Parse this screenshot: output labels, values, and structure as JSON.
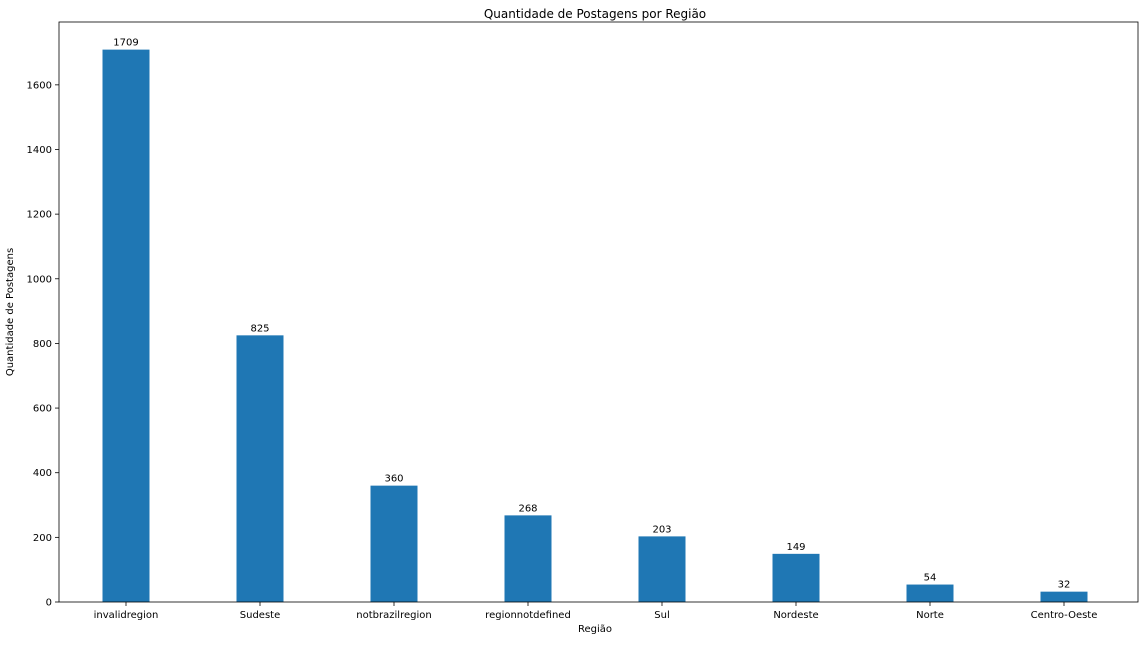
{
  "chart_data": {
    "type": "bar",
    "title": "Quantidade de Postagens por Região",
    "xlabel": "Região",
    "ylabel": "Quantidade de Postagens",
    "categories": [
      "invalidregion",
      "Sudeste",
      "notbrazilregion",
      "regionnotdefined",
      "Sul",
      "Nordeste",
      "Norte",
      "Centro-Oeste"
    ],
    "values": [
      1709,
      825,
      360,
      268,
      203,
      149,
      54,
      32
    ],
    "data_labels": [
      "1709",
      "825",
      "360",
      "268",
      "203",
      "149",
      "54",
      "32"
    ],
    "ylim": [
      0,
      1794.45
    ],
    "yticks": [
      0,
      200,
      400,
      600,
      800,
      1000,
      1200,
      1400,
      1600
    ],
    "ytick_labels": [
      "0",
      "200",
      "400",
      "600",
      "800",
      "1000",
      "1200",
      "1400",
      "1600"
    ],
    "grid": false,
    "legend": "none",
    "bar_color": "#1f77b4"
  }
}
